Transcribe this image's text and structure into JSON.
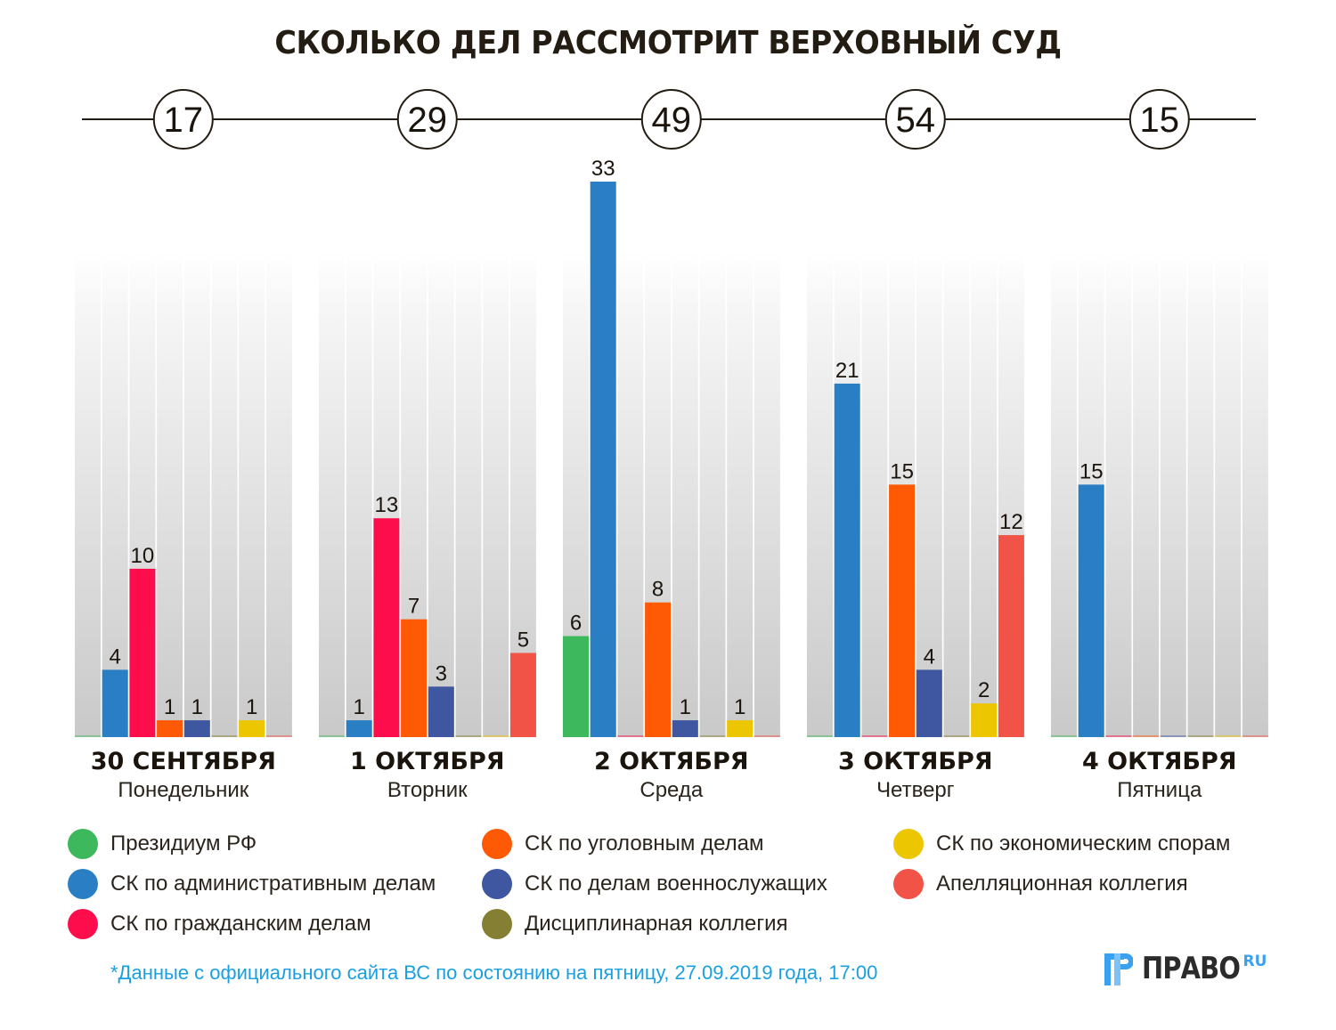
{
  "title": "СКОЛЬКО ДЕЛ РАССМОТРИТ ВЕРХОВНЫЙ СУД",
  "chart_data": {
    "type": "bar",
    "title": "СКОЛЬКО ДЕЛ РАССМОТРИТ ВЕРХОВНЫЙ СУД",
    "xlabel": "",
    "ylabel": "",
    "ylim": [
      0,
      33
    ],
    "grid": false,
    "legend_position": "bottom",
    "categories": [
      {
        "date": "30 СЕНТЯБРЯ",
        "weekday": "Понедельник",
        "total": 17
      },
      {
        "date": "1 ОКТЯБРЯ",
        "weekday": "Вторник",
        "total": 29
      },
      {
        "date": "2 ОКТЯБРЯ",
        "weekday": "Среда",
        "total": 49
      },
      {
        "date": "3 ОКТЯБРЯ",
        "weekday": "Четверг",
        "total": 54
      },
      {
        "date": "4 ОКТЯБРЯ",
        "weekday": "Пятница",
        "total": 15
      }
    ],
    "series": [
      {
        "name": "Президиум РФ",
        "color": "#3db85c",
        "values": [
          0,
          0,
          6,
          0,
          0
        ]
      },
      {
        "name": "СК по административным делам",
        "color": "#2a7fc4",
        "values": [
          4,
          1,
          33,
          21,
          15
        ]
      },
      {
        "name": "СК по гражданским делам",
        "color": "#fe0d4c",
        "values": [
          10,
          13,
          0,
          0,
          0
        ]
      },
      {
        "name": "СК по уголовным делам",
        "color": "#fe5904",
        "values": [
          1,
          7,
          8,
          15,
          0
        ]
      },
      {
        "name": "СК по делам военнослужащих",
        "color": "#3f57a1",
        "values": [
          1,
          3,
          1,
          4,
          0
        ]
      },
      {
        "name": "Дисциплинарная коллегия",
        "color": "#857f33",
        "values": [
          0,
          0,
          0,
          0,
          0
        ]
      },
      {
        "name": "СК по экономическим спорам",
        "color": "#ecc600",
        "values": [
          1,
          0,
          1,
          2,
          0
        ]
      },
      {
        "name": "Апелляционная коллегия",
        "color": "#f25347",
        "values": [
          0,
          5,
          0,
          12,
          0
        ]
      }
    ]
  },
  "footnote": "*Данные с официального сайта ВС по состоянию на пятницу, 27.09.2019 года, 17:00",
  "logo": {
    "text": "ПРАВО",
    "suffix": "RU",
    "color": "#3aa0f0"
  }
}
